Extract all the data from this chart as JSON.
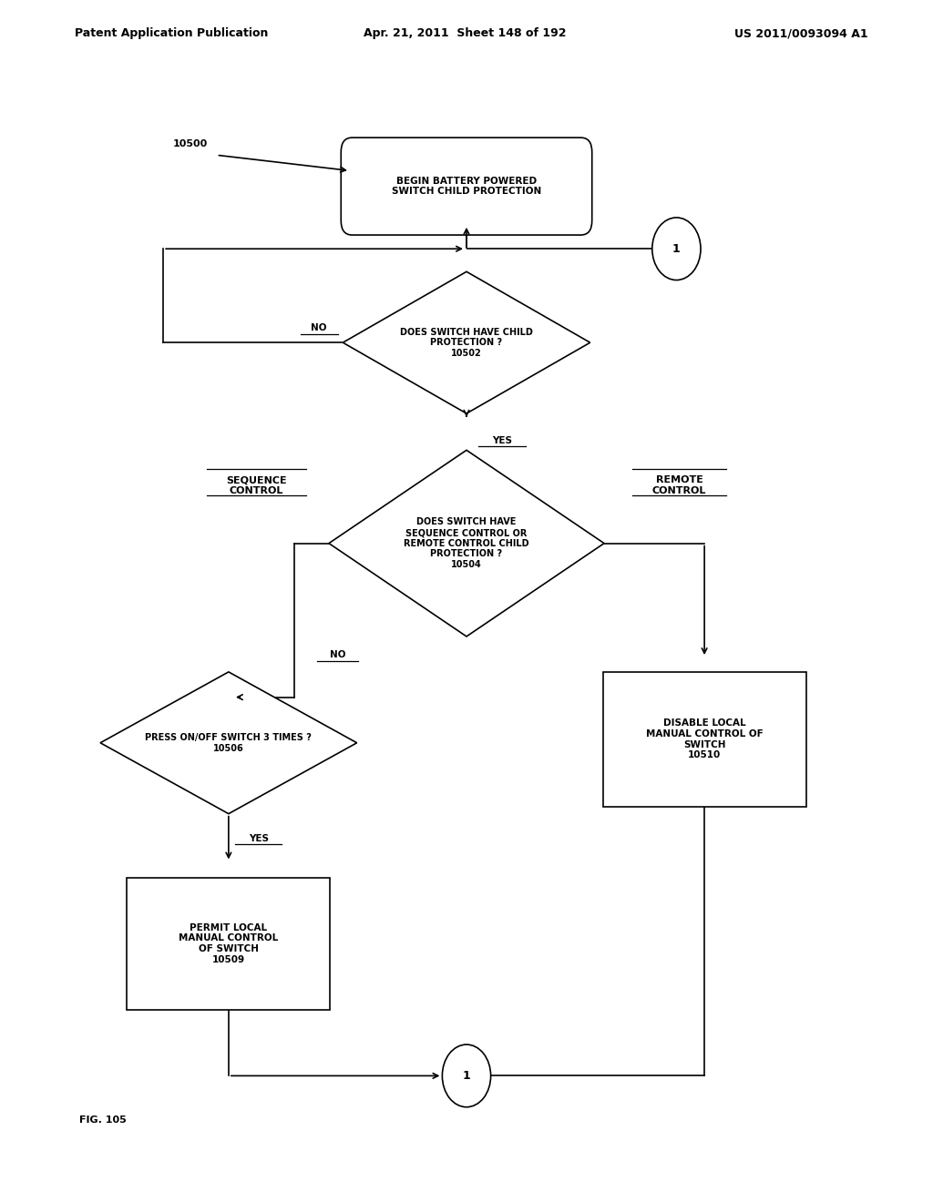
{
  "header_left": "Patent Application Publication",
  "header_middle": "Apr. 21, 2011  Sheet 148 of 192",
  "header_right": "US 2011/0093094 A1",
  "figure_label": "FIG. 105",
  "ref_label": "10500",
  "bg_color": "#ffffff",
  "line_color": "#000000",
  "text_color": "#000000",
  "font_size": 7.5,
  "header_font_size": 9
}
